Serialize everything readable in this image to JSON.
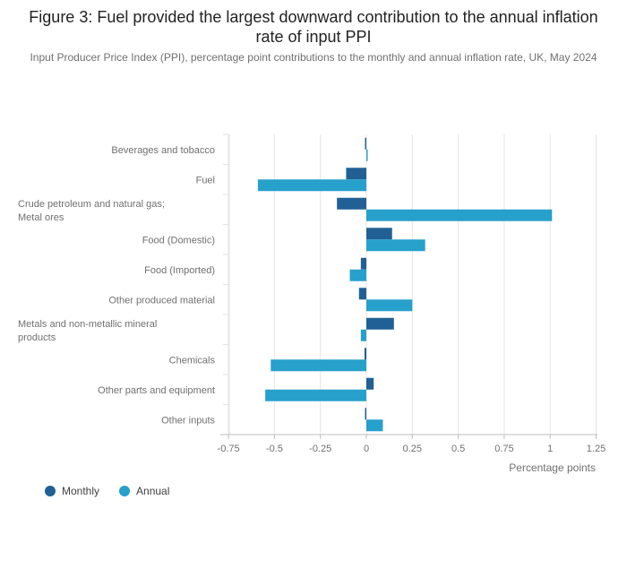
{
  "title": "Figure 3: Fuel provided the largest downward contribution to the annual inflation rate of input PPI",
  "subtitle": "Input Producer Price Index (PPI), percentage point contributions to the monthly and annual inflation rate, UK, May 2024",
  "colors": {
    "monthly": "#206095",
    "annual": "#27a0cc",
    "grid": "#e5e5e5",
    "axis": "#bebebe",
    "text": "#707070"
  },
  "chart_data": {
    "type": "bar",
    "orientation": "horizontal",
    "categories": [
      "Beverages and tobacco",
      "Fuel",
      "Crude petroleum and natural gas; Metal ores",
      "Food (Domestic)",
      "Food (Imported)",
      "Other produced material",
      "Metals and non-metallic mineral products",
      "Chemicals",
      "Other parts and equipment",
      "Other inputs"
    ],
    "series": [
      {
        "name": "Monthly",
        "values": [
          -0.005,
          -0.11,
          -0.16,
          0.14,
          -0.03,
          -0.04,
          0.15,
          -0.01,
          0.04,
          -0.005
        ]
      },
      {
        "name": "Annual",
        "values": [
          0.005,
          -0.59,
          1.01,
          0.32,
          -0.09,
          0.25,
          -0.03,
          -0.52,
          -0.55,
          0.09
        ]
      }
    ],
    "xlabel": "Percentage points",
    "xlim": [
      -0.8,
      1.3
    ],
    "xticks": [
      -0.75,
      -0.5,
      -0.25,
      0,
      0.25,
      0.5,
      0.75,
      1,
      1.25
    ],
    "xtick_labels": [
      "-0.75",
      "-0.5",
      "-0.25",
      "0",
      "0.25",
      "0.5",
      "0.75",
      "1",
      "1.25"
    ],
    "grid": true,
    "legend": "bottom-left"
  }
}
